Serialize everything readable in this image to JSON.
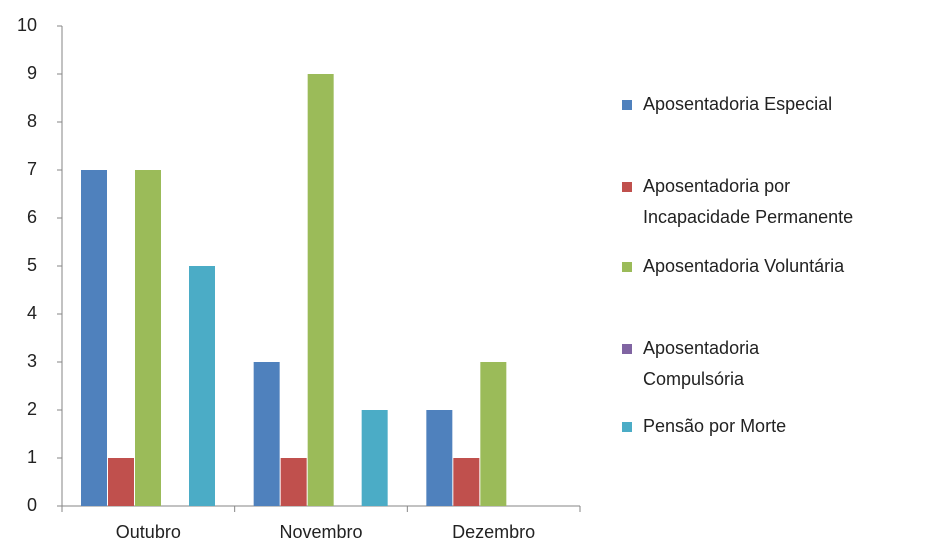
{
  "chart_data": {
    "type": "bar",
    "categories": [
      "Outubro",
      "Novembro",
      "Dezembro"
    ],
    "series": [
      {
        "name": "Aposentadoria Especial",
        "color": "#4f81bd",
        "values": [
          7,
          3,
          2
        ]
      },
      {
        "name": "Aposentadoria por Incapacidade Permanente",
        "color": "#c0504d",
        "values": [
          1,
          1,
          1
        ]
      },
      {
        "name": "Aposentadoria Voluntária",
        "color": "#9bbb59",
        "values": [
          7,
          9,
          3
        ]
      },
      {
        "name": "Aposentadoria Compulsória",
        "color": "#8064a2",
        "values": [
          0,
          0,
          0
        ]
      },
      {
        "name": "Pensão por Morte",
        "color": "#4bacc6",
        "values": [
          5,
          2,
          0
        ]
      }
    ],
    "ylim": [
      0,
      10
    ],
    "yticks": [
      0,
      1,
      2,
      3,
      4,
      5,
      6,
      7,
      8,
      9,
      10
    ],
    "grid": false,
    "legend": "right"
  }
}
